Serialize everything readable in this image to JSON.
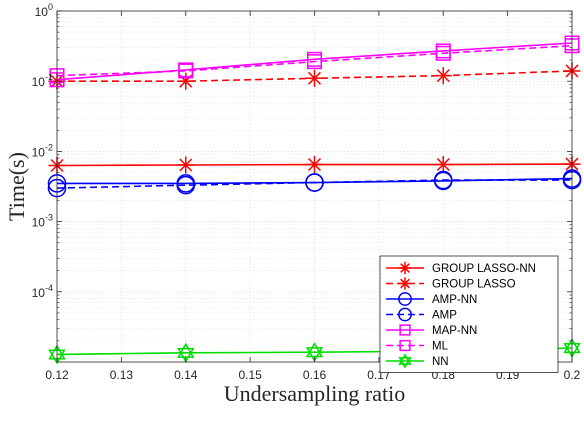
{
  "chart_data": {
    "type": "line",
    "title": "",
    "xlabel": "Undersampling ratio",
    "ylabel": "Time(s)",
    "xlim": [
      0.12,
      0.2
    ],
    "ylim": [
      1e-05,
      1
    ],
    "yscale": "log",
    "grid": true,
    "legend_position": "bottom-right",
    "x_ticks": [
      "0.12",
      "0.13",
      "0.14",
      "0.15",
      "0.16",
      "0.17",
      "0.18",
      "0.19",
      "0.2"
    ],
    "y_ticks": [
      {
        "base": "10",
        "exp": "0"
      },
      {
        "base": "10",
        "exp": "-1"
      },
      {
        "base": "10",
        "exp": "-2"
      },
      {
        "base": "10",
        "exp": "-3"
      },
      {
        "base": "10",
        "exp": "-4"
      }
    ],
    "x": [
      0.12,
      0.14,
      0.16,
      0.18,
      0.2
    ],
    "series": [
      {
        "name": "GROUP LASSO-NN",
        "color": "#ff0000",
        "dash": "solid",
        "marker": "asterisk",
        "values": [
          0.0063,
          0.0064,
          0.0065,
          0.0065,
          0.0066
        ]
      },
      {
        "name": "GROUP LASSO",
        "color": "#ff0000",
        "dash": "dashed",
        "marker": "asterisk",
        "values": [
          0.1,
          0.1,
          0.11,
          0.12,
          0.14
        ]
      },
      {
        "name": "AMP-NN",
        "color": "#0000ff",
        "dash": "solid",
        "marker": "circle",
        "values": [
          0.0035,
          0.0035,
          0.0036,
          0.0038,
          0.0041
        ]
      },
      {
        "name": "AMP",
        "color": "#0000ff",
        "dash": "dashed",
        "marker": "circle-minus",
        "values": [
          0.003,
          0.0033,
          0.0036,
          0.0039,
          0.0039
        ]
      },
      {
        "name": "MAP-NN",
        "color": "#ff00ff",
        "dash": "solid",
        "marker": "square",
        "values": [
          0.105,
          0.145,
          0.205,
          0.27,
          0.35
        ]
      },
      {
        "name": "ML",
        "color": "#ff00ff",
        "dash": "dashed",
        "marker": "square-minus",
        "values": [
          0.12,
          0.14,
          0.19,
          0.25,
          0.32
        ]
      },
      {
        "name": "NN",
        "color": "#00dd00",
        "dash": "solid",
        "marker": "hexagram",
        "values": [
          1.28e-05,
          1.35e-05,
          1.38e-05,
          1.43e-05,
          1.58e-05
        ]
      }
    ]
  }
}
